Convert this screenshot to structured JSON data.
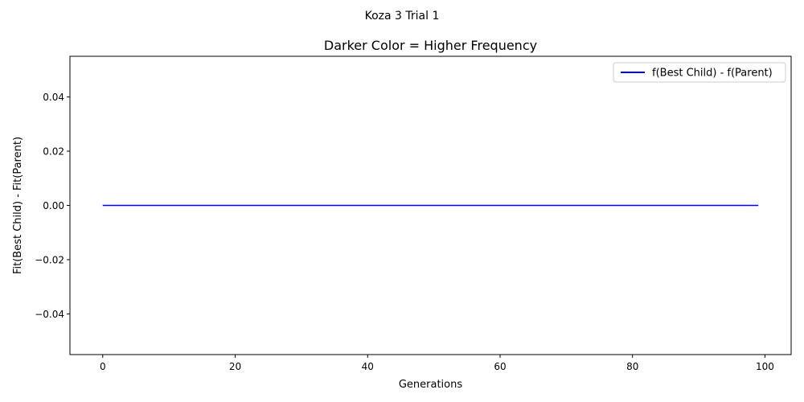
{
  "chart_data": {
    "type": "line",
    "suptitle": "Koza 3 Trial 1",
    "title": "Darker Color = Higher Frequency",
    "xlabel": "Generations",
    "ylabel": "Fit(Best Child) - Fit(Parent)",
    "xlim": [
      -4.95,
      103.95
    ],
    "ylim": [
      -0.055,
      0.055
    ],
    "xticks": [
      0,
      20,
      40,
      60,
      80,
      100
    ],
    "xtick_labels": [
      "0",
      "20",
      "40",
      "60",
      "80",
      "100"
    ],
    "yticks": [
      -0.04,
      -0.02,
      0.0,
      0.02,
      0.04
    ],
    "ytick_labels": [
      "−0.04",
      "−0.02",
      "0.00",
      "0.02",
      "0.04"
    ],
    "grid": false,
    "legend_position": "upper-right",
    "series": [
      {
        "name": "f(Best Child) - f(Parent)",
        "color": "#0000ff",
        "x_start": 0,
        "x_end": 99,
        "constant_y": 0.0
      }
    ]
  }
}
